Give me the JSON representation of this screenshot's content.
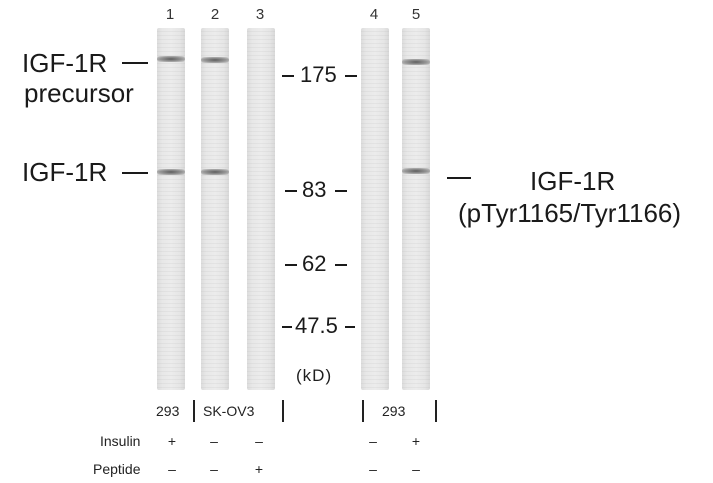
{
  "lanes": [
    "1",
    "2",
    "3",
    "4",
    "5"
  ],
  "left_labels": {
    "precursor_line1": "IGF-1R",
    "precursor_line2": "precursor",
    "mature": "IGF-1R"
  },
  "markers": {
    "m175": "175",
    "m83": "83",
    "m62": "62",
    "m47": "47.5",
    "unit": "(kD)"
  },
  "right_label": {
    "line1": "IGF-1R",
    "line2": "(pTyr1165/Tyr1166)"
  },
  "cell_lines": {
    "a": "293",
    "b": "SK-OV3",
    "c": "293"
  },
  "rows": {
    "insulin": {
      "label": "Insulin",
      "values": [
        "+",
        "–",
        "–",
        "–",
        "+"
      ]
    },
    "peptide": {
      "label": "Peptide",
      "values": [
        "–",
        "–",
        "+",
        "–",
        "–"
      ]
    }
  }
}
